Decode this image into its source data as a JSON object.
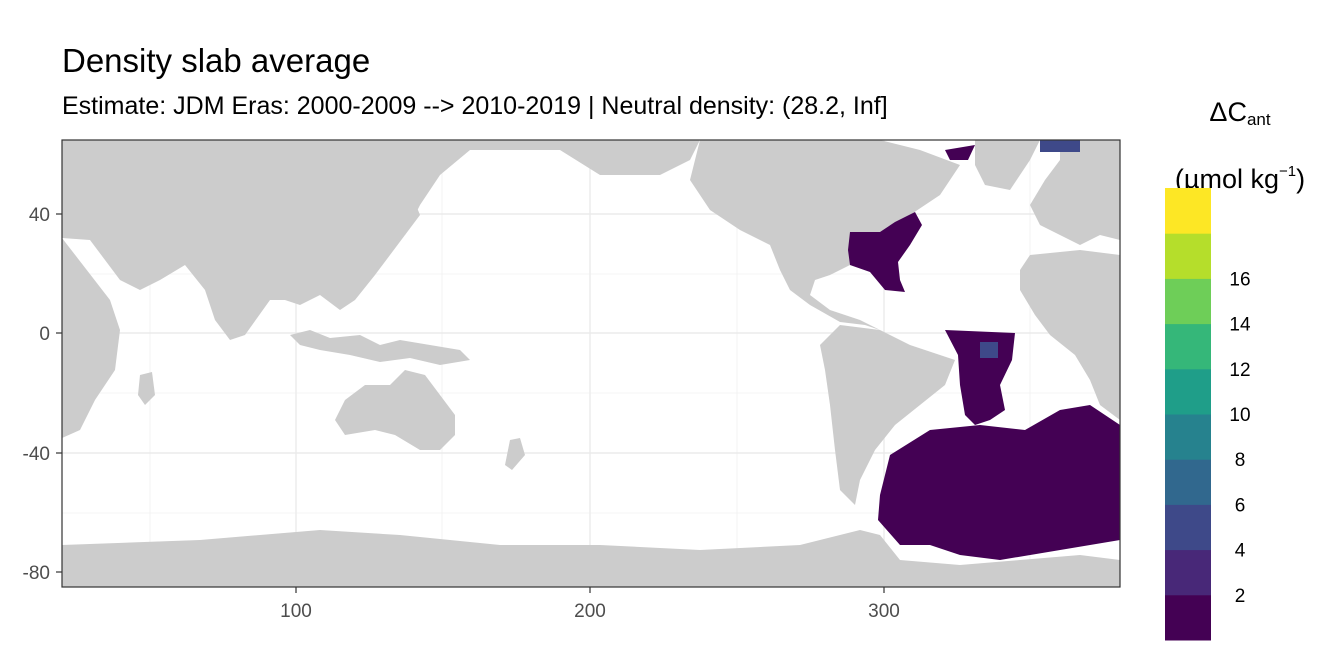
{
  "title": "Density slab average",
  "subtitle": "Estimate: JDM Eras: 2000-2009 --> 2010-2019 | Neutral density: (28.2, Inf]",
  "legend": {
    "delta_symbol": "ΔC",
    "subscript": "ant",
    "unit_prefix": "(µmol kg",
    "unit_sup": "−1",
    "unit_suffix": ")",
    "colors": [
      "#440154",
      "#482878",
      "#3e4989",
      "#31688e",
      "#26828e",
      "#1f9e89",
      "#35b779",
      "#6ece58",
      "#b5de2b",
      "#fde725"
    ],
    "tick_labels": [
      "2",
      "4",
      "6",
      "8",
      "10",
      "12",
      "14",
      "16"
    ]
  },
  "map": {
    "x_ticks": [
      "100",
      "200",
      "300"
    ],
    "y_ticks": [
      "40",
      "0",
      "-40",
      "-80"
    ],
    "land_color": "#cccccc",
    "ocean_color": "#ffffff",
    "grid_color": "#ebebeb",
    "data_color": "#440154",
    "highlight_color": "#3e4989"
  }
}
